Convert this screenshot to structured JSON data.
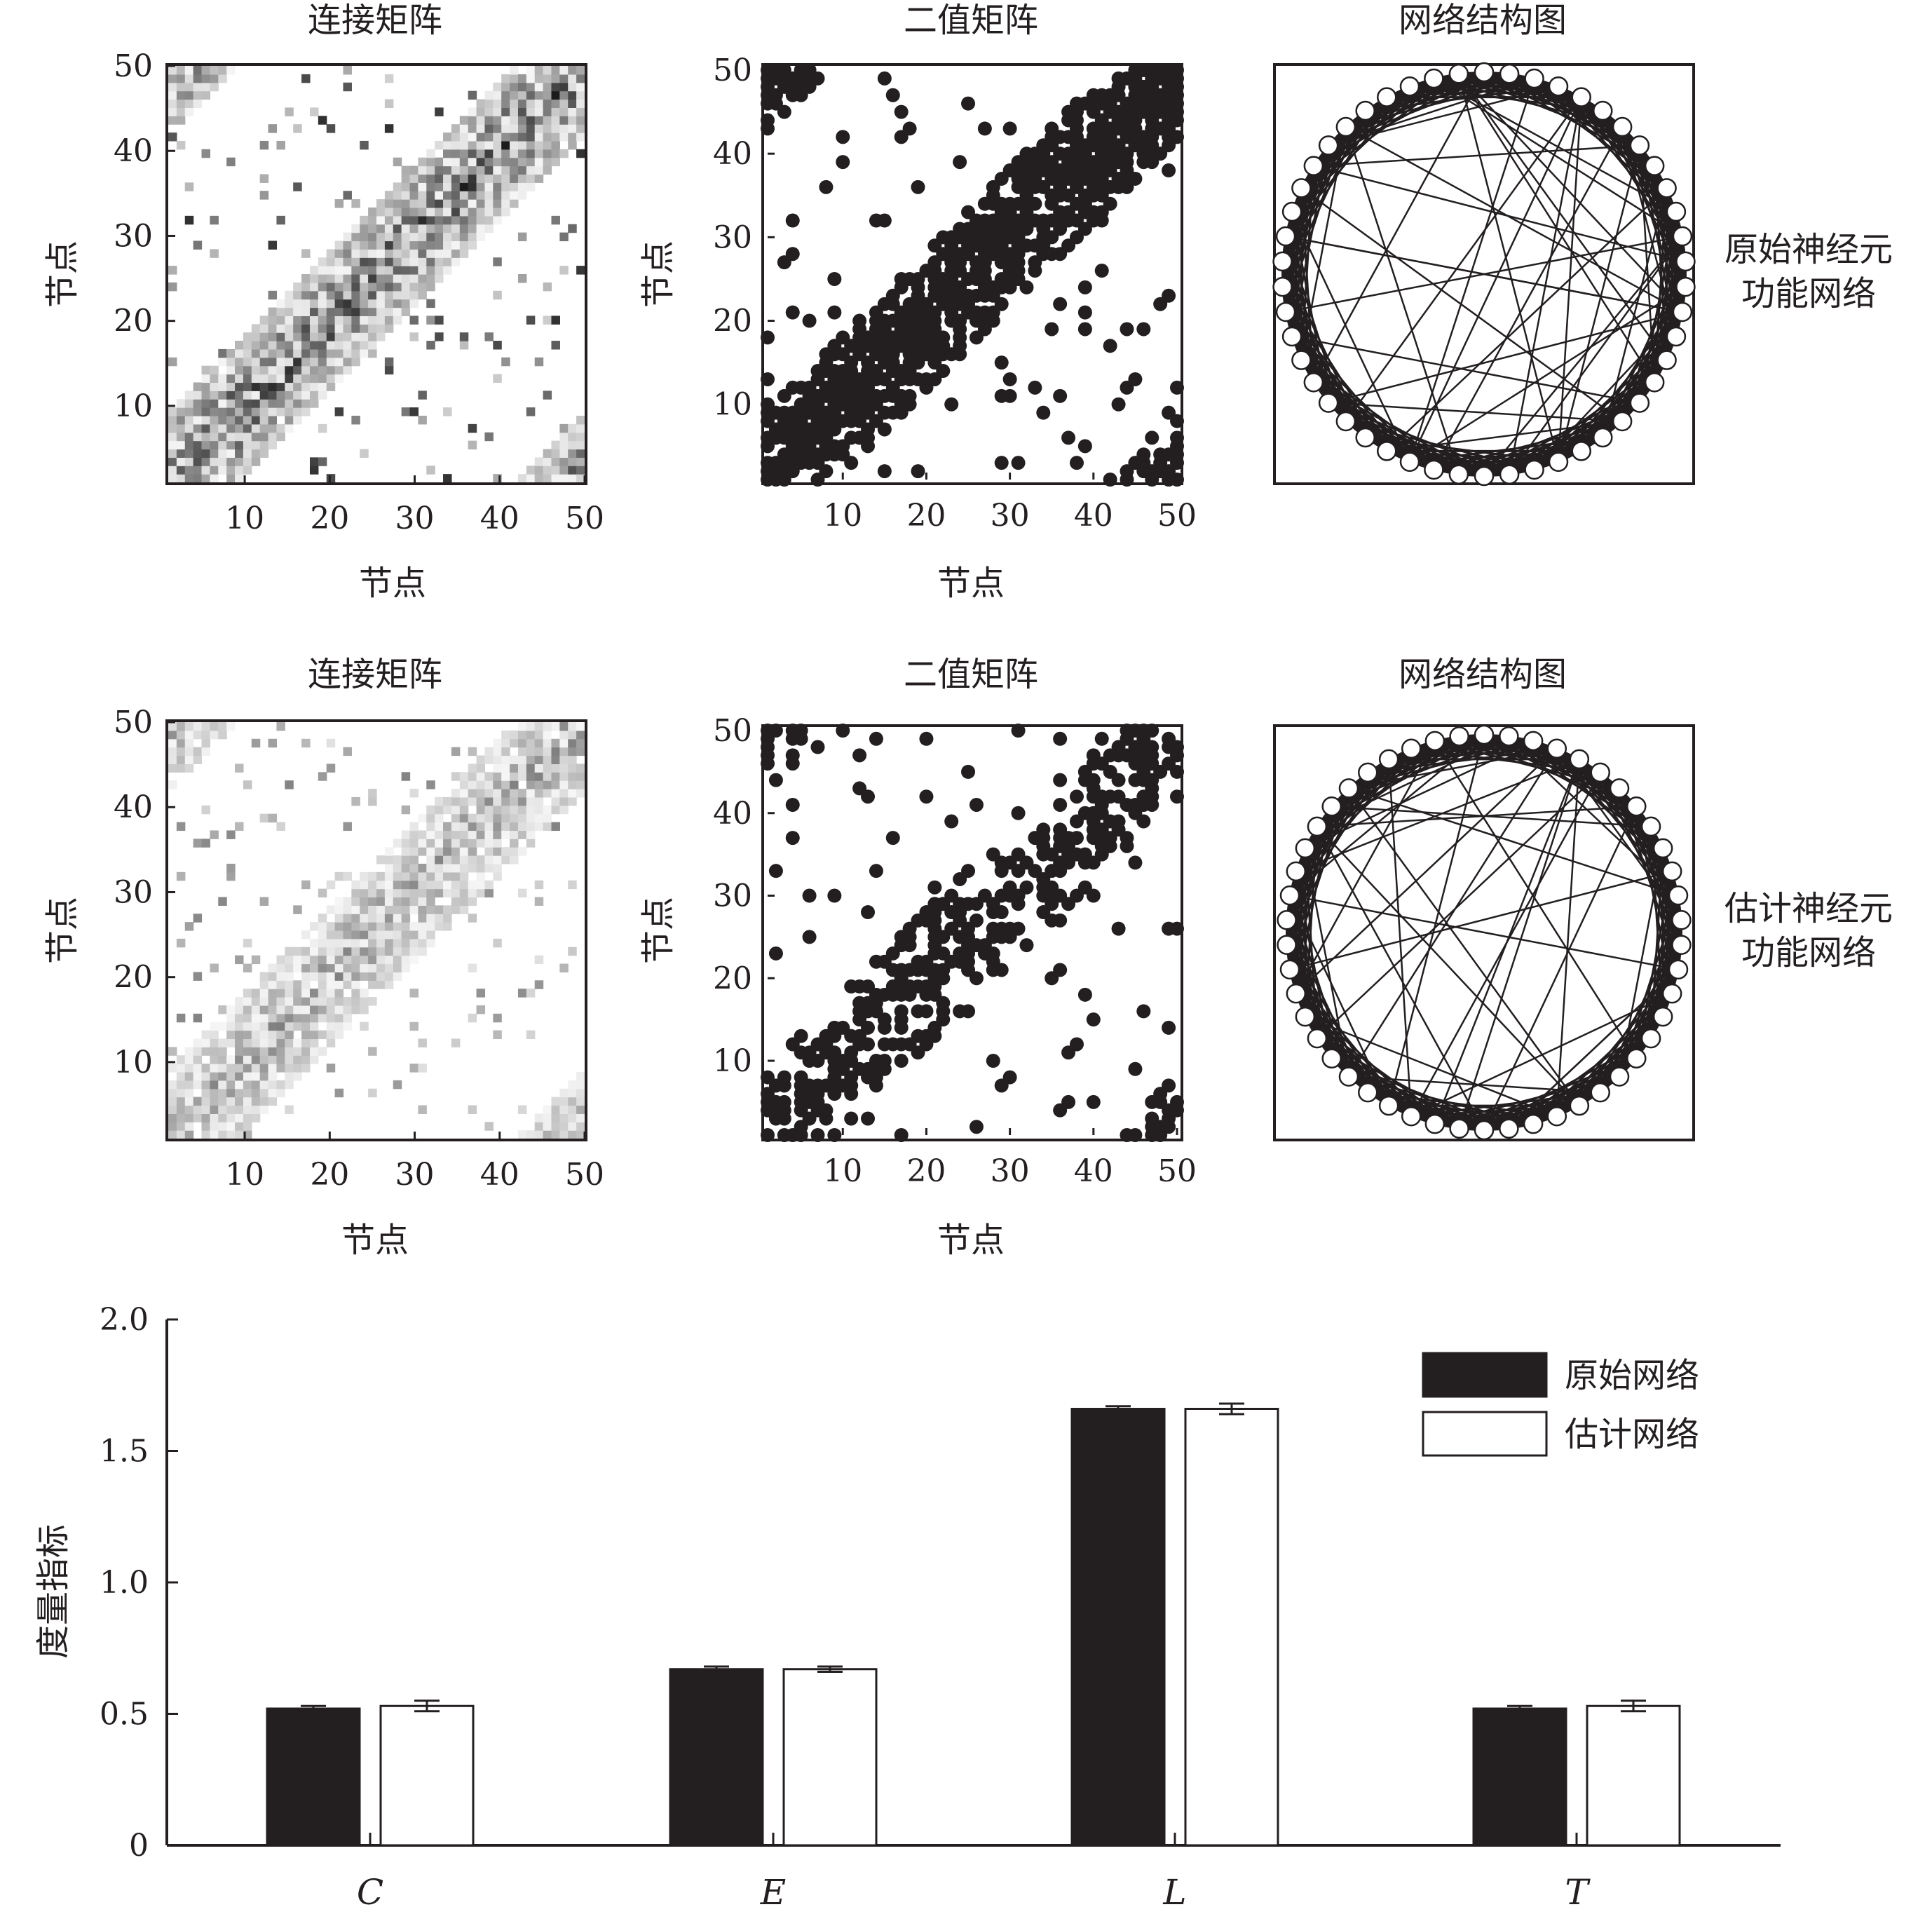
{
  "rows": [
    {
      "matrix_title": "连接矩阵",
      "binary_title": "二值矩阵",
      "network_title": "网络结构图",
      "network_label_line1": "原始神经元",
      "network_label_line2": "功能网络",
      "ylabel": "节点",
      "xlabel": "节点"
    },
    {
      "matrix_title": "连接矩阵",
      "binary_title": "二值矩阵",
      "network_title": "网络结构图",
      "network_label_line1": "估计神经元",
      "network_label_line2": "功能网络",
      "ylabel": "节点",
      "xlabel": "节点"
    }
  ],
  "chart_data": [
    {
      "type": "heatmap",
      "panel": "top-left",
      "title": "连接矩阵",
      "xlabel": "节点",
      "ylabel": "节点",
      "xlim": [
        1,
        50
      ],
      "ylim": [
        1,
        50
      ],
      "xticks": [
        10,
        20,
        30,
        40,
        50
      ],
      "yticks": [
        10,
        20,
        30,
        40,
        50
      ],
      "nodes": 50,
      "band_width": 8,
      "seed": 11,
      "intensity": 1.0
    },
    {
      "type": "scatter",
      "panel": "top-middle",
      "title": "二值矩阵",
      "xlabel": "节点",
      "ylabel": "节点",
      "xlim": [
        1,
        50
      ],
      "ylim": [
        1,
        50
      ],
      "xticks": [
        10,
        20,
        30,
        40,
        50
      ],
      "yticks": [
        10,
        20,
        30,
        40,
        50
      ],
      "nodes": 50,
      "band_width": 8,
      "seed": 11,
      "density": 0.92
    },
    {
      "type": "network",
      "panel": "top-right",
      "title": "网络结构图",
      "nodes": 50,
      "seed": 5
    },
    {
      "type": "heatmap",
      "panel": "bottom-left",
      "title": "连接矩阵",
      "xlabel": "节点",
      "ylabel": "节点",
      "xlim": [
        1,
        50
      ],
      "ylim": [
        1,
        50
      ],
      "xticks": [
        10,
        20,
        30,
        40,
        50
      ],
      "yticks": [
        10,
        20,
        30,
        40,
        50
      ],
      "nodes": 50,
      "band_width": 8,
      "seed": 23,
      "intensity": 0.6
    },
    {
      "type": "scatter",
      "panel": "bottom-middle",
      "title": "二值矩阵",
      "xlabel": "节点",
      "ylabel": "节点",
      "xlim": [
        1,
        50
      ],
      "ylim": [
        1,
        50
      ],
      "xticks": [
        10,
        20,
        30,
        40,
        50
      ],
      "yticks": [
        10,
        20,
        30,
        40,
        50
      ],
      "nodes": 50,
      "band_width": 8,
      "seed": 23,
      "density": 0.55
    },
    {
      "type": "network",
      "panel": "bottom-right",
      "title": "网络结构图",
      "nodes": 50,
      "seed": 9
    },
    {
      "type": "bar",
      "panel": "bottom",
      "categories": [
        "C",
        "E",
        "L",
        "T"
      ],
      "series": [
        {
          "name": "原始网络",
          "values": [
            0.52,
            0.67,
            1.66,
            0.52
          ],
          "errors": [
            0.01,
            0.01,
            0.01,
            0.01
          ],
          "color": "#231f20"
        },
        {
          "name": "估计网络",
          "values": [
            0.53,
            0.67,
            1.66,
            0.53
          ],
          "errors": [
            0.02,
            0.01,
            0.02,
            0.02
          ],
          "color": "#ffffff"
        }
      ],
      "ylabel": "度量指标",
      "ylim": [
        0,
        2.0
      ],
      "yticks": [
        0,
        0.5,
        1.0,
        1.5,
        2.0
      ],
      "ytick_labels": [
        "0",
        "0.5",
        "1.0",
        "1.5",
        "2.0"
      ],
      "legend_position": "top-right"
    }
  ]
}
